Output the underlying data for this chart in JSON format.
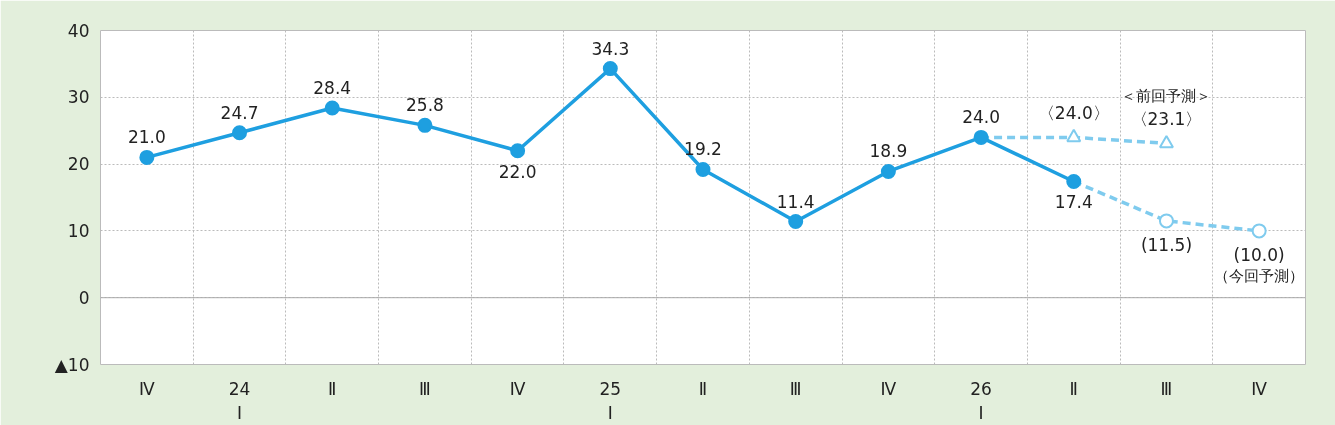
{
  "chart_data": {
    "type": "line",
    "categories": [
      "Ⅳ",
      "24\nⅠ",
      "Ⅱ",
      "Ⅲ",
      "Ⅳ",
      "25\nⅠ",
      "Ⅱ",
      "Ⅲ",
      "Ⅳ",
      "26\nⅠ",
      "Ⅱ",
      "Ⅲ",
      "Ⅳ"
    ],
    "series": [
      {
        "color": "#1e9fe0",
        "line_style": "solid",
        "marker": "circle",
        "values": [
          21.0,
          24.7,
          28.4,
          25.8,
          22.0,
          34.3,
          19.2,
          11.4,
          18.9,
          24.0,
          17.4,
          null,
          null
        ],
        "value_labels": [
          "21.0",
          "24.7",
          "28.4",
          "25.8",
          "22.0",
          "34.3",
          "19.2",
          "11.4",
          "18.9",
          "24.0",
          "17.4",
          null,
          null
        ]
      },
      {
        "name": "＜前回予測＞",
        "color": "#7fcbee",
        "line_style": "dashed",
        "marker": "triangle",
        "values": [
          null,
          null,
          null,
          null,
          null,
          null,
          null,
          null,
          null,
          24.0,
          24.0,
          23.1,
          null
        ],
        "value_labels": [
          null,
          null,
          null,
          null,
          null,
          null,
          null,
          null,
          null,
          null,
          "〈24.0〉",
          "〈23.1〉",
          null
        ]
      },
      {
        "name": "（今回予測）",
        "color": "#7fcbee",
        "line_style": "dashed",
        "marker": "circle",
        "values": [
          null,
          null,
          null,
          null,
          null,
          null,
          null,
          null,
          null,
          null,
          17.4,
          11.5,
          10.0
        ],
        "value_labels": [
          null,
          null,
          null,
          null,
          null,
          null,
          null,
          null,
          null,
          null,
          null,
          "(11.5)",
          "(10.0)"
        ]
      }
    ],
    "ylim": [
      -10,
      40
    ],
    "yticks": [
      {
        "value": -10,
        "label": "▲10"
      },
      0,
      10,
      20,
      30,
      40
    ],
    "grid": true
  }
}
